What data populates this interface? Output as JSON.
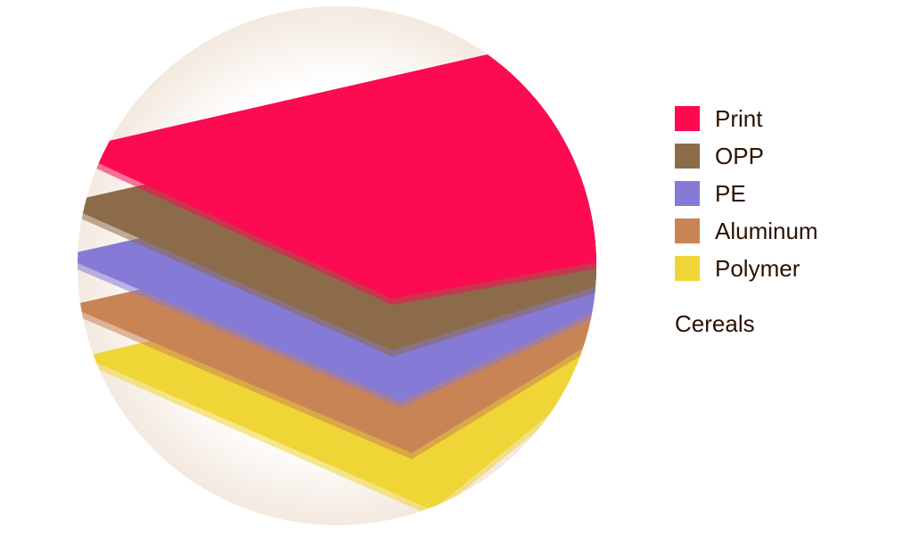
{
  "legend": [
    {
      "label": "Print",
      "color": "#fc0a52"
    },
    {
      "label": "OPP",
      "color": "#8c6b4a"
    },
    {
      "label": "PE",
      "color": "#857ad6"
    },
    {
      "label": "Aluminum",
      "color": "#c98456"
    },
    {
      "label": "Polymer",
      "color": "#efd535"
    }
  ],
  "caption": "Cereals"
}
